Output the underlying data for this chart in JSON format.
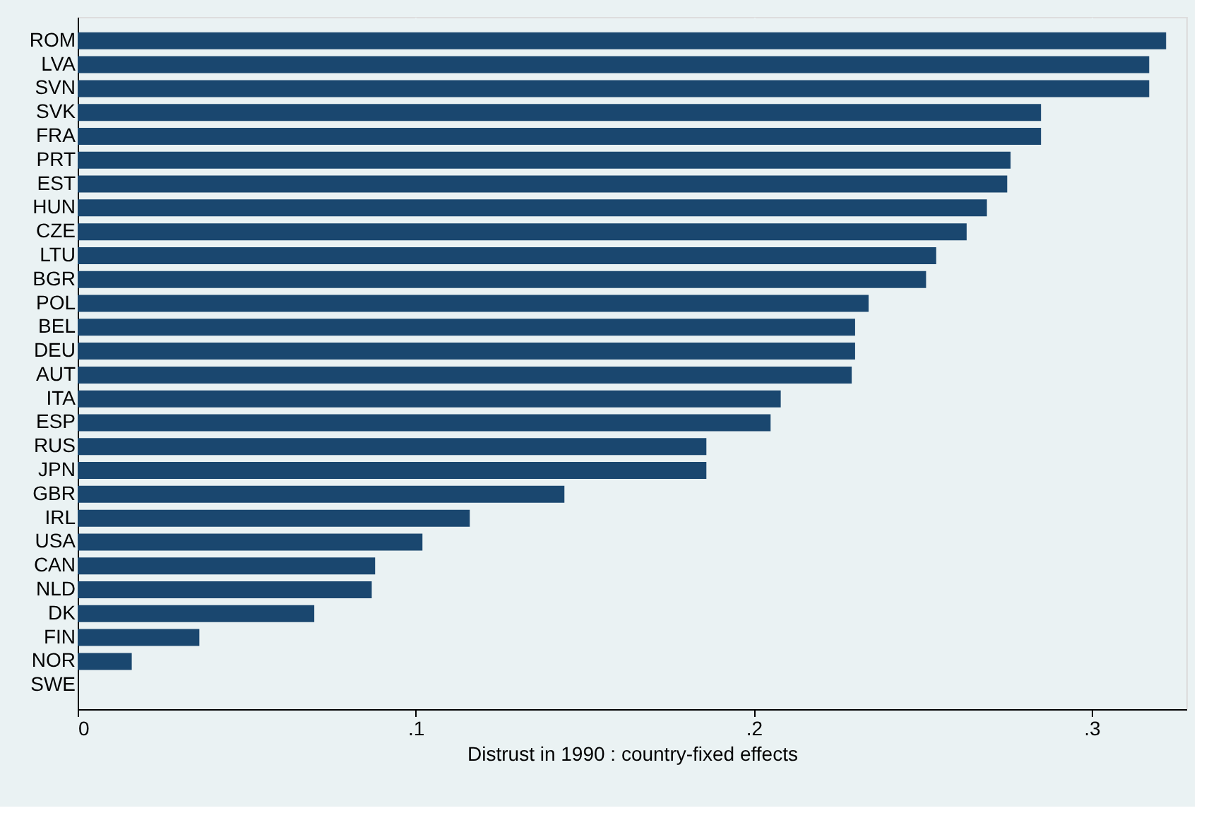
{
  "chart_data": {
    "type": "bar",
    "orientation": "horizontal",
    "xlabel": "Distrust in 1990 : country-fixed effects",
    "categories": [
      "ROM",
      "LVA",
      "SVN",
      "SVK",
      "FRA",
      "PRT",
      "EST",
      "HUN",
      "CZE",
      "LTU",
      "BGR",
      "POL",
      "BEL",
      "DEU",
      "AUT",
      "ITA",
      "ESP",
      "RUS",
      "JPN",
      "GBR",
      "IRL",
      "USA",
      "CAN",
      "NLD",
      "DK",
      "FIN",
      "NOR",
      "SWE"
    ],
    "values": [
      0.322,
      0.317,
      0.317,
      0.285,
      0.285,
      0.276,
      0.275,
      0.269,
      0.263,
      0.254,
      0.251,
      0.234,
      0.23,
      0.23,
      0.229,
      0.208,
      0.205,
      0.186,
      0.186,
      0.144,
      0.116,
      0.102,
      0.088,
      0.087,
      0.07,
      0.036,
      0.016,
      0
    ],
    "color": "#1a476f",
    "xlim": [
      0,
      0.328
    ],
    "xticks": [
      {
        "value": 0,
        "label": "0"
      },
      {
        "value": 0.1,
        "label": ".1"
      },
      {
        "value": 0.2,
        "label": ".2"
      },
      {
        "value": 0.3,
        "label": ".3"
      }
    ],
    "grid": "x"
  }
}
